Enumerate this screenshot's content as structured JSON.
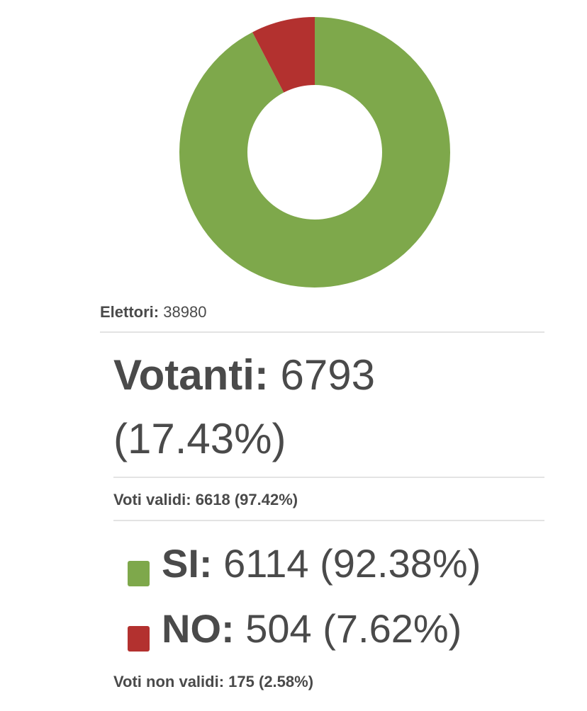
{
  "elettori": {
    "label": "Elettori:",
    "value": 38980
  },
  "votanti": {
    "label": "Votanti:",
    "value": 6793,
    "percent": "(17.43%)"
  },
  "validi": {
    "label": "Voti validi:",
    "value": 6618,
    "percent": "(97.42%)"
  },
  "results": [
    {
      "label": "SI:",
      "votes": 6114,
      "percent": "(92.38%)",
      "color": "#7ea84b"
    },
    {
      "label": "NO:",
      "votes": 504,
      "percent": "(7.62%)",
      "color": "#b3312f"
    }
  ],
  "non_validi": {
    "label": "Voti non validi:",
    "value": 175,
    "percent": "(2.58%)"
  }
}
